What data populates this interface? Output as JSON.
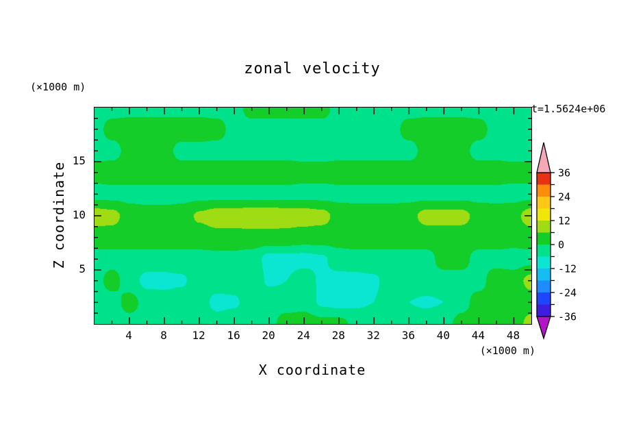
{
  "title": "zonal velocity",
  "time_label": "t=1.5624e+06",
  "axes": {
    "x_title": "X coordinate",
    "x_unit": "(×1000 m)",
    "x_ticks": [
      4,
      8,
      12,
      16,
      20,
      24,
      28,
      32,
      36,
      40,
      44,
      48
    ],
    "x_range": [
      0,
      50
    ],
    "x_minor_step": 2,
    "y_title": "Z coordinate",
    "y_unit": "(×1000 m)",
    "y_ticks": [
      5,
      10,
      15
    ],
    "y_range": [
      0,
      20
    ],
    "y_minor_step": 1
  },
  "colorbar": {
    "orientation": "vertical-right",
    "tick_labels": [
      36,
      24,
      12,
      0,
      -12,
      -24,
      -36
    ],
    "level_step": 6,
    "top_arrow": "values > 36",
    "bottom_arrow": "values < -36"
  },
  "chart_data": {
    "type": "heatmap",
    "variant": "filled-contour",
    "title": "zonal velocity",
    "xlabel": "X coordinate (×1000 m)",
    "ylabel": "Z coordinate (×1000 m)",
    "annotation": "t=1.5624e+06",
    "x_range": [
      0,
      50
    ],
    "z_range": [
      0,
      20
    ],
    "grid": "off",
    "legend_position": "right",
    "x": [
      0,
      2,
      4,
      6,
      8,
      10,
      12,
      14,
      16,
      18,
      20,
      22,
      24,
      26,
      28,
      30,
      32,
      34,
      36,
      38,
      40,
      42,
      44,
      46,
      48,
      50
    ],
    "z_rows_top_to_bottom": [
      20,
      18,
      16,
      14,
      12,
      10,
      8,
      6,
      4,
      2,
      0
    ],
    "values": [
      [
        -2,
        -2,
        -2,
        -2,
        -2,
        -2,
        -2,
        -2,
        -2,
        2,
        2,
        2,
        2,
        2,
        -2,
        -2,
        -2,
        -2,
        -2,
        -2,
        -2,
        -2,
        -2,
        -2,
        -2,
        -2
      ],
      [
        -2,
        2,
        3,
        3,
        3,
        3,
        3,
        2,
        -2,
        -2,
        -2,
        -2,
        -2,
        -2,
        -2,
        -2,
        -2,
        -2,
        2,
        3,
        3,
        3,
        2,
        -2,
        -2,
        -2
      ],
      [
        -2,
        -2,
        2,
        3,
        2,
        -2,
        -2,
        -2,
        -2,
        -2,
        -2,
        -2,
        -2,
        -2,
        -2,
        -2,
        -2,
        -2,
        -2,
        2,
        2,
        2,
        -2,
        -2,
        -2,
        -2
      ],
      [
        2,
        3,
        3,
        3,
        3,
        3,
        3,
        3,
        3,
        3,
        3,
        3,
        2,
        2,
        3,
        3,
        3,
        3,
        3,
        3,
        3,
        3,
        3,
        3,
        2,
        2
      ],
      [
        -2,
        -2,
        -2,
        -2,
        -2,
        -2,
        -2,
        -2,
        -2,
        -2,
        -2,
        -2,
        -2,
        -2,
        -2,
        -2,
        -2,
        -2,
        -2,
        -2,
        -2,
        -2,
        -2,
        -2,
        -2,
        -2
      ],
      [
        9,
        8,
        3,
        2,
        2,
        3,
        7,
        9,
        9,
        10,
        10,
        9,
        9,
        8,
        4,
        3,
        3,
        3,
        4,
        8,
        8,
        8,
        4,
        3,
        4,
        9
      ],
      [
        3,
        3,
        3,
        3,
        3,
        3,
        3,
        4,
        4,
        4,
        4,
        4,
        3,
        3,
        3,
        3,
        3,
        3,
        3,
        3,
        3,
        3,
        3,
        3,
        3,
        3
      ],
      [
        -2,
        -2,
        -2,
        -2,
        -2,
        -2,
        -2,
        -2,
        -2,
        -3,
        -8,
        -8,
        -8,
        -7,
        -3,
        -2,
        -2,
        -2,
        -2,
        -2,
        2,
        2,
        -2,
        -2,
        -3,
        -2
      ],
      [
        -2,
        2,
        -3,
        -8,
        -8,
        -7,
        -2,
        -2,
        -3,
        -2,
        -7,
        -6,
        -3,
        -7,
        -8,
        -8,
        -7,
        -3,
        -2,
        -2,
        -2,
        -2,
        -2,
        3,
        3,
        8
      ],
      [
        -2,
        -2,
        2,
        -2,
        -3,
        -2,
        -3,
        -8,
        -7,
        -2,
        -2,
        -3,
        -2,
        -7,
        -8,
        -7,
        -6,
        -2,
        -6,
        -7,
        -6,
        -2,
        2,
        3,
        3,
        3
      ],
      [
        -2,
        -2,
        -2,
        -2,
        -2,
        -2,
        -2,
        -3,
        -2,
        -2,
        -2,
        3,
        3,
        2,
        2,
        -2,
        -2,
        -2,
        -3,
        -2,
        -2,
        2,
        3,
        3,
        3,
        8
      ]
    ],
    "levels": [
      -36,
      -30,
      -24,
      -18,
      -12,
      -6,
      0,
      6,
      12,
      18,
      24,
      30,
      36
    ],
    "palette": [
      "#B414C8",
      "#3C1EDC",
      "#1E46FF",
      "#1E8CFF",
      "#14BEF0",
      "#0AE6D2",
      "#00E18C",
      "#14CD28",
      "#A0DC14",
      "#F0E60A",
      "#FFC814",
      "#FF8C0A",
      "#E83214",
      "#F5A9B8"
    ]
  }
}
